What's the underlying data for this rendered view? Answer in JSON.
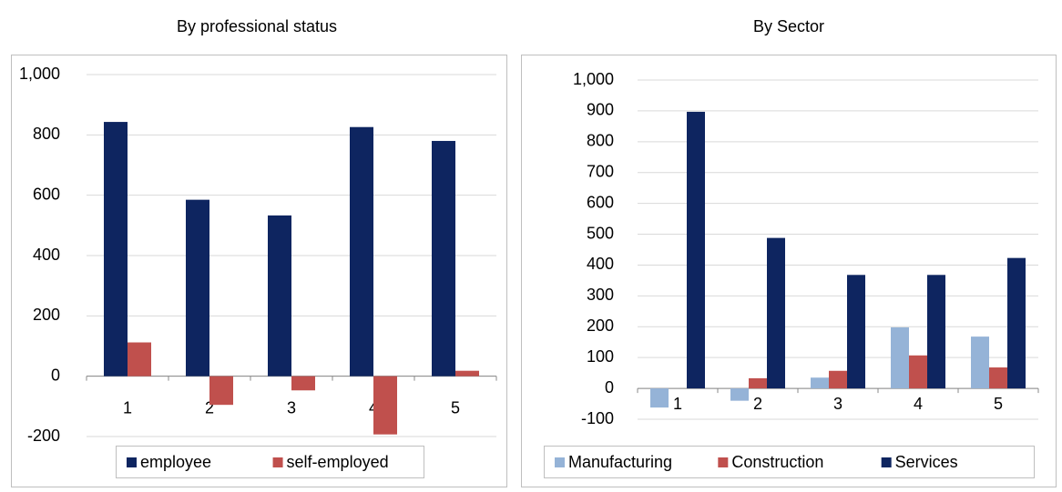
{
  "chart_data": [
    {
      "type": "bar",
      "title": "By professional status",
      "categories": [
        "1",
        "2",
        "3",
        "4",
        "5"
      ],
      "series": [
        {
          "name": "employee",
          "color": "#0e2560",
          "values": [
            843,
            585,
            533,
            826,
            780
          ]
        },
        {
          "name": "self-employed",
          "color": "#c0504d",
          "values": [
            112,
            -95,
            -47,
            -193,
            18
          ]
        }
      ],
      "ylim": [
        -200,
        1000
      ],
      "yticks": [
        -200,
        0,
        200,
        400,
        600,
        800,
        {
          "value": 1000,
          "label": "1,000"
        }
      ],
      "grid": true,
      "legend": "bottom"
    },
    {
      "type": "bar",
      "title": "By Sector",
      "categories": [
        "1",
        "2",
        "3",
        "4",
        "5"
      ],
      "series": [
        {
          "name": "Manufacturing",
          "color": "#95b3d7",
          "values": [
            -62,
            -40,
            35,
            198,
            168
          ]
        },
        {
          "name": "Construction",
          "color": "#c0504d",
          "values": [
            0,
            33,
            57,
            107,
            68
          ]
        },
        {
          "name": "Services",
          "color": "#0e2560",
          "values": [
            897,
            488,
            368,
            368,
            423
          ]
        }
      ],
      "ylim": [
        -100,
        1000
      ],
      "yticks": [
        -100,
        0,
        100,
        200,
        300,
        400,
        500,
        600,
        700,
        800,
        900,
        {
          "value": 1000,
          "label": "1,000"
        }
      ],
      "grid": true,
      "legend": "bottom"
    }
  ]
}
